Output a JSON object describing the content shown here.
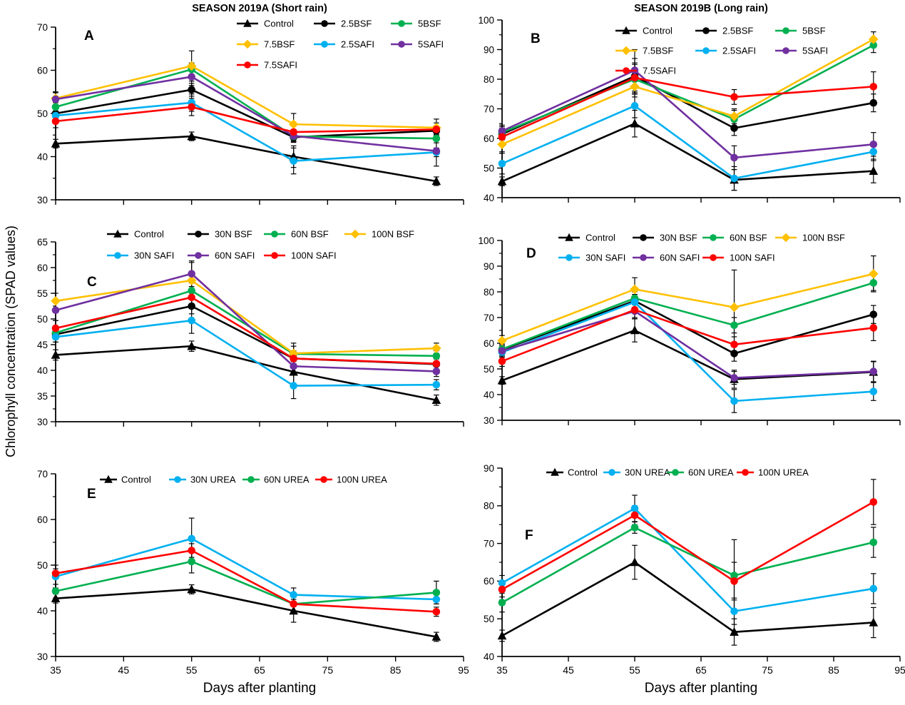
{
  "figure": {
    "ylabel": "Chlorophyll concentration (SPAD values)",
    "xlabel": "Days after planting"
  },
  "palette": {
    "black": "#000000",
    "gold": "#FFC000",
    "green": "#00B050",
    "blue": "#00B0F0",
    "purple": "#7030A0",
    "red": "#FF0000"
  },
  "chart_data": [
    {
      "id": "A",
      "type": "line",
      "title": "SEASON 2019A (Short rain)",
      "x": [
        35,
        55,
        70,
        91
      ],
      "xticks": [
        35,
        45,
        55,
        65,
        75,
        85,
        95
      ],
      "ylim": [
        30,
        70
      ],
      "ytick_step": 10,
      "show_x_labels": false,
      "legend_rows": [
        [
          0,
          1,
          2
        ],
        [
          3,
          4,
          5
        ],
        [
          6
        ]
      ],
      "series": [
        {
          "name": "Control",
          "color": "black",
          "marker": "triangle",
          "values": [
            43,
            44.7,
            40,
            34.3
          ],
          "err": [
            1,
            1,
            2.5,
            1
          ]
        },
        {
          "name": "2.5BSF",
          "color": "black",
          "marker": "circle",
          "values": [
            50,
            55.5,
            44.5,
            46
          ],
          "err": [
            1.5,
            1.5,
            1,
            1
          ]
        },
        {
          "name": "5BSF",
          "color": "green",
          "marker": "circle",
          "values": [
            51.5,
            60.2,
            44.7,
            44.2
          ],
          "err": [
            1,
            1.5,
            1,
            1
          ]
        },
        {
          "name": "7.5BSF",
          "color": "gold",
          "marker": "diamond",
          "values": [
            53.5,
            61,
            47.5,
            46.7
          ],
          "err": [
            1.5,
            3.5,
            2.5,
            2
          ]
        },
        {
          "name": "2.5SAFI",
          "color": "blue",
          "marker": "circle",
          "values": [
            49.5,
            52.5,
            39,
            41
          ],
          "err": [
            1,
            2,
            3,
            1
          ]
        },
        {
          "name": "5SAFI",
          "color": "purple",
          "marker": "circle",
          "values": [
            53.3,
            58.5,
            44.8,
            41.3
          ],
          "err": [
            1.5,
            2,
            1.5,
            3.5
          ]
        },
        {
          "name": "7.5SAFI",
          "color": "red",
          "marker": "circle",
          "values": [
            48.2,
            51.5,
            45.7,
            46.3
          ],
          "err": [
            1.5,
            2,
            1.5,
            1.5
          ]
        }
      ]
    },
    {
      "id": "B",
      "type": "line",
      "title": "SEASON 2019B (Long rain)",
      "x": [
        35,
        55,
        70,
        91
      ],
      "xticks": [
        35,
        45,
        55,
        65,
        75,
        85,
        95
      ],
      "ylim": [
        40,
        100
      ],
      "ytick_step": 10,
      "show_x_labels": false,
      "legend_rows": [
        [
          0,
          1,
          2
        ],
        [
          3,
          4,
          5
        ],
        [
          6
        ]
      ],
      "series": [
        {
          "name": "Control",
          "color": "black",
          "marker": "triangle",
          "values": [
            45.5,
            65,
            46,
            49
          ],
          "err": [
            1.5,
            4.5,
            3.5,
            4
          ]
        },
        {
          "name": "2.5BSF",
          "color": "black",
          "marker": "circle",
          "values": [
            61.5,
            81,
            63.5,
            72
          ],
          "err": [
            2,
            6,
            2.5,
            3
          ]
        },
        {
          "name": "5BSF",
          "color": "green",
          "marker": "circle",
          "values": [
            62,
            80,
            66.5,
            91.5
          ],
          "err": [
            2,
            5,
            3,
            2.5
          ]
        },
        {
          "name": "7.5BSF",
          "color": "gold",
          "marker": "diamond",
          "values": [
            58,
            77.5,
            67.5,
            93.5
          ],
          "err": [
            2.5,
            3.5,
            2.5,
            2.5
          ]
        },
        {
          "name": "2.5SAFI",
          "color": "blue",
          "marker": "circle",
          "values": [
            51.5,
            71,
            46.5,
            55.5
          ],
          "err": [
            3.5,
            4,
            4,
            3
          ]
        },
        {
          "name": "5SAFI",
          "color": "purple",
          "marker": "circle",
          "values": [
            62.5,
            83,
            53.5,
            58
          ],
          "err": [
            2,
            7,
            4,
            4
          ]
        },
        {
          "name": "7.5SAFI",
          "color": "red",
          "marker": "circle",
          "values": [
            60.5,
            80.5,
            74,
            77.5
          ],
          "err": [
            2,
            5,
            2.5,
            5
          ]
        }
      ]
    },
    {
      "id": "C",
      "type": "line",
      "title": "",
      "x": [
        35,
        55,
        70,
        91
      ],
      "xticks": [
        35,
        45,
        55,
        65,
        75,
        85,
        95
      ],
      "ylim": [
        30,
        65
      ],
      "ytick_step": 5,
      "show_x_labels": false,
      "legend_rows": [
        [
          0,
          1,
          2,
          3
        ],
        [
          4,
          5,
          6
        ]
      ],
      "series": [
        {
          "name": "Control",
          "color": "black",
          "marker": "triangle",
          "values": [
            43,
            44.7,
            39.7,
            34.2
          ],
          "err": [
            1,
            1,
            2.5,
            1
          ]
        },
        {
          "name": "30N BSF",
          "color": "black",
          "marker": "circle",
          "values": [
            47,
            52.5,
            42.3,
            41.2
          ],
          "err": [
            1.5,
            1.5,
            1.5,
            1
          ]
        },
        {
          "name": "60N BSF",
          "color": "green",
          "marker": "circle",
          "values": [
            47.3,
            55.5,
            43.2,
            42.8
          ],
          "err": [
            1,
            1.5,
            1.5,
            1
          ]
        },
        {
          "name": "100N BSF",
          "color": "gold",
          "marker": "diamond",
          "values": [
            53.5,
            57.5,
            43.3,
            44.3
          ],
          "err": [
            1.5,
            3.5,
            2,
            1
          ]
        },
        {
          "name": "30N SAFI",
          "color": "blue",
          "marker": "circle",
          "values": [
            46.5,
            49.7,
            37,
            37.2
          ],
          "err": [
            1,
            2.5,
            2.5,
            1
          ]
        },
        {
          "name": "60N SAFI",
          "color": "purple",
          "marker": "circle",
          "values": [
            51.7,
            58.8,
            40.8,
            39.8
          ],
          "err": [
            2,
            2.5,
            1.5,
            1
          ]
        },
        {
          "name": "100N SAFI",
          "color": "red",
          "marker": "circle",
          "values": [
            48.2,
            54.2,
            42.3,
            41.3
          ],
          "err": [
            1.5,
            1.5,
            1.5,
            1
          ]
        }
      ]
    },
    {
      "id": "D",
      "type": "line",
      "title": "",
      "x": [
        35,
        55,
        70,
        91
      ],
      "xticks": [
        35,
        45,
        55,
        65,
        75,
        85,
        95
      ],
      "ylim": [
        30,
        100
      ],
      "ytick_step": 10,
      "show_x_labels": false,
      "legend_rows": [
        [
          0,
          1,
          2,
          3
        ],
        [
          4,
          5,
          6
        ]
      ],
      "series": [
        {
          "name": "Control",
          "color": "black",
          "marker": "triangle",
          "values": [
            45.5,
            65,
            46,
            48.8
          ],
          "err": [
            1.5,
            4.5,
            3.5,
            4
          ]
        },
        {
          "name": "30N BSF",
          "color": "black",
          "marker": "circle",
          "values": [
            57.5,
            76.5,
            56,
            71.2
          ],
          "err": [
            2,
            2.5,
            3,
            3.5
          ]
        },
        {
          "name": "60N BSF",
          "color": "green",
          "marker": "circle",
          "values": [
            57.7,
            77.5,
            67,
            83.5
          ],
          "err": [
            2,
            2.5,
            3,
            3
          ]
        },
        {
          "name": "100N BSF",
          "color": "gold",
          "marker": "diamond",
          "values": [
            61,
            81,
            74,
            87
          ],
          "err": [
            2,
            4.5,
            14.5,
            7
          ]
        },
        {
          "name": "30N SAFI",
          "color": "blue",
          "marker": "circle",
          "values": [
            56.5,
            76,
            37.5,
            41.2
          ],
          "err": [
            2,
            3,
            4.5,
            3.5
          ]
        },
        {
          "name": "60N SAFI",
          "color": "purple",
          "marker": "circle",
          "values": [
            57,
            72.5,
            46.5,
            49
          ],
          "err": [
            2,
            2.5,
            2.5,
            4
          ]
        },
        {
          "name": "100N SAFI",
          "color": "red",
          "marker": "circle",
          "values": [
            53,
            73,
            59.5,
            66
          ],
          "err": [
            2,
            3.5,
            3,
            5
          ]
        }
      ]
    },
    {
      "id": "E",
      "type": "line",
      "title": "",
      "x": [
        35,
        55,
        70,
        91
      ],
      "xticks": [
        35,
        45,
        55,
        65,
        75,
        85,
        95
      ],
      "ylim": [
        30,
        70
      ],
      "ytick_step": 10,
      "show_x_labels": true,
      "legend_rows": [
        [
          0,
          1,
          2,
          3
        ]
      ],
      "series": [
        {
          "name": "Control",
          "color": "black",
          "marker": "triangle",
          "values": [
            42.7,
            44.7,
            40,
            34.3
          ],
          "err": [
            1,
            1,
            2.5,
            1
          ]
        },
        {
          "name": "30N UREA",
          "color": "blue",
          "marker": "circle",
          "values": [
            47.5,
            55.8,
            43.5,
            42.5
          ],
          "err": [
            2.5,
            4.5,
            1.5,
            1
          ]
        },
        {
          "name": "60N UREA",
          "color": "green",
          "marker": "circle",
          "values": [
            44.3,
            50.8,
            41.5,
            44
          ],
          "err": [
            1.5,
            2.5,
            1.5,
            2.5
          ]
        },
        {
          "name": "100N UREA",
          "color": "red",
          "marker": "circle",
          "values": [
            48.2,
            53.2,
            41.5,
            39.8
          ],
          "err": [
            1,
            1.5,
            1.5,
            1
          ]
        }
      ]
    },
    {
      "id": "F",
      "type": "line",
      "title": "",
      "x": [
        35,
        55,
        70,
        91
      ],
      "xticks": [
        35,
        45,
        55,
        65,
        75,
        85,
        95
      ],
      "ylim": [
        40,
        90
      ],
      "ytick_step": 10,
      "show_x_labels": true,
      "legend_rows": [
        [
          0,
          1,
          2,
          3
        ]
      ],
      "series": [
        {
          "name": "Control",
          "color": "black",
          "marker": "triangle",
          "values": [
            45.5,
            65,
            46.5,
            49
          ],
          "err": [
            1.5,
            4.5,
            3.5,
            4
          ]
        },
        {
          "name": "30N UREA",
          "color": "blue",
          "marker": "circle",
          "values": [
            59.5,
            79.3,
            52,
            58
          ],
          "err": [
            2,
            3.5,
            3.5,
            4
          ]
        },
        {
          "name": "60N UREA",
          "color": "green",
          "marker": "circle",
          "values": [
            54.3,
            74.2,
            61.5,
            70.3
          ],
          "err": [
            2.5,
            1.5,
            9.5,
            4
          ]
        },
        {
          "name": "100N UREA",
          "color": "red",
          "marker": "circle",
          "values": [
            57.8,
            77.5,
            60,
            81
          ],
          "err": [
            2,
            2.5,
            5,
            6
          ]
        }
      ]
    }
  ]
}
